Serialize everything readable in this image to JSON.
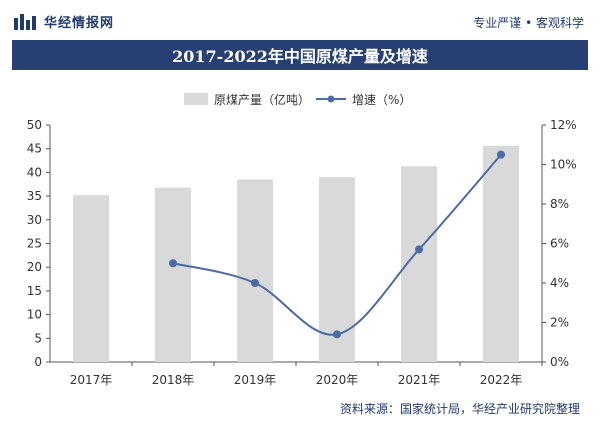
{
  "header": {
    "brand": "华经情报网",
    "slogan": "专业严谨 • 客观科学"
  },
  "chart_data": {
    "type": "bar",
    "title": "2017-2022年中国原煤产量及增速",
    "categories": [
      "2017年",
      "2018年",
      "2019年",
      "2020年",
      "2021年",
      "2022年"
    ],
    "series": [
      {
        "name": "原煤产量（亿吨）",
        "type": "bar",
        "axis": "left",
        "color": "#d9d9d9",
        "values": [
          35.2,
          36.8,
          38.5,
          39.0,
          41.3,
          45.6
        ]
      },
      {
        "name": "增速（%）",
        "type": "line",
        "axis": "right",
        "color": "#4a6aa8",
        "values": [
          null,
          5.0,
          4.0,
          1.4,
          5.7,
          10.5
        ]
      }
    ],
    "y_left": {
      "min": 0,
      "max": 50,
      "ticks": [
        "0",
        "5",
        "10",
        "15",
        "20",
        "25",
        "30",
        "35",
        "40",
        "45",
        "50"
      ]
    },
    "y_right": {
      "min": 0,
      "max": 12,
      "ticks": [
        "0%",
        "2%",
        "4%",
        "6%",
        "8%",
        "10%",
        "12%"
      ]
    },
    "legend": "top-center",
    "grid": false
  },
  "footer": {
    "source": "资料来源：国家统计局，华经产业研究院整理"
  }
}
